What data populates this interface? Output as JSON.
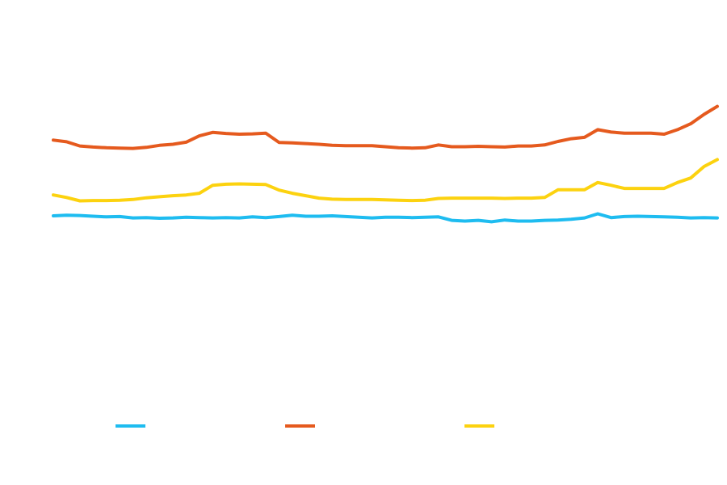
{
  "chart_data": {
    "type": "line",
    "title": "",
    "xlabel": "",
    "ylabel": "",
    "grid": false,
    "legend_position": "bottom",
    "x": [
      0,
      2,
      4,
      6,
      8,
      10,
      12,
      14,
      16,
      18,
      20,
      22,
      24,
      26,
      28,
      30,
      32,
      34,
      36,
      38,
      40,
      42,
      44,
      46,
      48,
      50,
      52,
      54,
      56,
      58,
      60,
      62,
      64,
      66,
      68,
      70,
      72,
      74,
      76,
      78,
      80,
      82,
      84,
      86,
      88,
      90,
      92,
      94,
      96,
      98,
      100
    ],
    "xlim": [
      0,
      100
    ],
    "ylim": [
      0,
      100
    ],
    "series": [
      {
        "name": "",
        "color": "#1EBCF0",
        "values": [
          47.2,
          47.4,
          47.3,
          47.1,
          46.9,
          47.0,
          46.6,
          46.7,
          46.5,
          46.6,
          46.8,
          46.7,
          46.6,
          46.7,
          46.6,
          46.9,
          46.7,
          47.0,
          47.4,
          47.1,
          47.1,
          47.2,
          47.0,
          46.8,
          46.6,
          46.8,
          46.8,
          46.7,
          46.8,
          46.9,
          45.9,
          45.7,
          45.9,
          45.5,
          46.0,
          45.7,
          45.7,
          45.9,
          46.0,
          46.2,
          46.6,
          47.8,
          46.7,
          47.0,
          47.1,
          47.0,
          46.9,
          46.8,
          46.6,
          46.7,
          46.6
        ]
      },
      {
        "name": "",
        "color": "#E55A1E",
        "values": [
          69.0,
          68.5,
          67.3,
          67.0,
          66.8,
          66.7,
          66.6,
          66.9,
          67.5,
          67.8,
          68.4,
          70.2,
          71.2,
          70.9,
          70.7,
          70.8,
          71.0,
          68.3,
          68.2,
          68.0,
          67.8,
          67.5,
          67.4,
          67.4,
          67.4,
          67.1,
          66.8,
          66.7,
          66.8,
          67.6,
          67.1,
          67.1,
          67.2,
          67.1,
          67.0,
          67.3,
          67.3,
          67.6,
          68.6,
          69.4,
          69.8,
          72.0,
          71.3,
          71.0,
          71.0,
          71.0,
          70.7,
          72.0,
          73.7,
          76.4,
          78.7
        ]
      },
      {
        "name": "",
        "color": "#FCD20F",
        "values": [
          53.2,
          52.5,
          51.5,
          51.6,
          51.6,
          51.7,
          51.9,
          52.4,
          52.7,
          53.0,
          53.2,
          53.7,
          56.0,
          56.3,
          56.4,
          56.3,
          56.2,
          54.6,
          53.7,
          53.0,
          52.3,
          52.0,
          51.9,
          51.9,
          51.9,
          51.8,
          51.7,
          51.6,
          51.7,
          52.2,
          52.3,
          52.3,
          52.3,
          52.3,
          52.2,
          52.3,
          52.3,
          52.5,
          54.7,
          54.7,
          54.7,
          56.8,
          56.0,
          55.1,
          55.1,
          55.1,
          55.1,
          56.8,
          58.1,
          61.4,
          63.4
        ]
      }
    ]
  }
}
